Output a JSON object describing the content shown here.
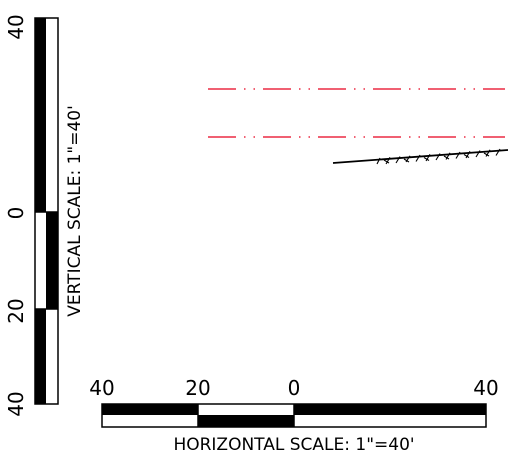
{
  "vertical_scale": {
    "label": "VERTICAL SCALE:  1\"=40'",
    "tick_labels": [
      "40",
      "0",
      "20",
      "40"
    ]
  },
  "horizontal_scale": {
    "label": "HORIZONTAL SCALE:  1\"=40'",
    "tick_labels": [
      "40",
      "20",
      "0",
      "40"
    ]
  },
  "colors": {
    "ink": "#000000",
    "centerline": "#e8001e",
    "background": "#ffffff"
  }
}
